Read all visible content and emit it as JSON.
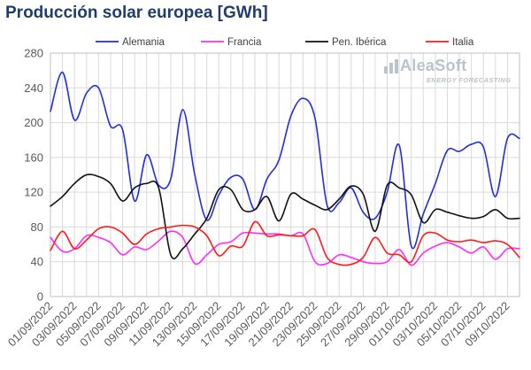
{
  "chart_data": {
    "type": "line",
    "title": "Producción solar europea [GWh]",
    "xlabel": "",
    "ylabel": "",
    "ylim": [
      0,
      280
    ],
    "yticks": [
      0,
      40,
      80,
      120,
      160,
      200,
      240,
      280
    ],
    "grid": true,
    "legend_position": "top",
    "x_start": "2022-09-01",
    "x_end": "2022-10-10",
    "x_tick_labels": [
      "01/09/2022",
      "03/09/2022",
      "05/09/2022",
      "07/09/2022",
      "09/09/2022",
      "11/09/2022",
      "13/09/2022",
      "15/09/2022",
      "17/09/2022",
      "19/09/2022",
      "21/09/2022",
      "23/09/2022",
      "25/09/2022",
      "27/09/2022",
      "29/09/2022",
      "01/10/2022",
      "03/10/2022",
      "05/10/2022",
      "07/10/2022",
      "09/10/2022"
    ],
    "x": [
      "2022-09-01",
      "2022-09-02",
      "2022-09-03",
      "2022-09-04",
      "2022-09-05",
      "2022-09-06",
      "2022-09-07",
      "2022-09-08",
      "2022-09-09",
      "2022-09-10",
      "2022-09-11",
      "2022-09-12",
      "2022-09-13",
      "2022-09-14",
      "2022-09-15",
      "2022-09-16",
      "2022-09-17",
      "2022-09-18",
      "2022-09-19",
      "2022-09-20",
      "2022-09-21",
      "2022-09-22",
      "2022-09-23",
      "2022-09-24",
      "2022-09-25",
      "2022-09-26",
      "2022-09-27",
      "2022-09-28",
      "2022-09-29",
      "2022-09-30",
      "2022-10-01",
      "2022-10-02",
      "2022-10-03",
      "2022-10-04",
      "2022-10-05",
      "2022-10-06",
      "2022-10-07",
      "2022-10-08",
      "2022-10-09",
      "2022-10-10"
    ],
    "series": [
      {
        "name": "Alemania",
        "color": "#1f2fd6",
        "values": [
          213,
          258,
          203,
          234,
          240,
          196,
          192,
          110,
          163,
          128,
          135,
          215,
          140,
          88,
          117,
          137,
          135,
          100,
          135,
          157,
          208,
          228,
          205,
          105,
          108,
          125,
          97,
          90,
          120,
          174,
          58,
          95,
          130,
          168,
          167,
          175,
          172,
          115,
          182,
          182
        ]
      },
      {
        "name": "Francia",
        "color": "#ff2cff",
        "values": [
          68,
          52,
          55,
          70,
          68,
          62,
          48,
          57,
          54,
          64,
          75,
          68,
          38,
          48,
          60,
          63,
          73,
          73,
          72,
          72,
          70,
          72,
          40,
          38,
          48,
          45,
          40,
          38,
          40,
          54,
          36,
          50,
          58,
          62,
          57,
          50,
          57,
          43,
          55,
          55
        ]
      },
      {
        "name": "Pen. Ibérica",
        "color": "#111111",
        "values": [
          104,
          115,
          130,
          140,
          138,
          130,
          110,
          125,
          130,
          125,
          48,
          55,
          72,
          90,
          123,
          123,
          100,
          100,
          115,
          87,
          118,
          112,
          105,
          100,
          112,
          127,
          118,
          75,
          128,
          125,
          117,
          85,
          100,
          97,
          93,
          90,
          92,
          100,
          90,
          90
        ]
      },
      {
        "name": "Italia",
        "color": "#ff1a1a",
        "values": [
          53,
          75,
          55,
          65,
          78,
          80,
          73,
          60,
          72,
          78,
          80,
          82,
          80,
          70,
          47,
          58,
          58,
          86,
          70,
          71,
          70,
          70,
          77,
          45,
          37,
          37,
          45,
          68,
          50,
          48,
          40,
          70,
          73,
          65,
          63,
          65,
          62,
          64,
          60,
          45
        ]
      }
    ]
  },
  "branding": {
    "name": "AleaSoft",
    "tagline": "ENERGY FORECASTING",
    "color": "#b9c3cd"
  }
}
